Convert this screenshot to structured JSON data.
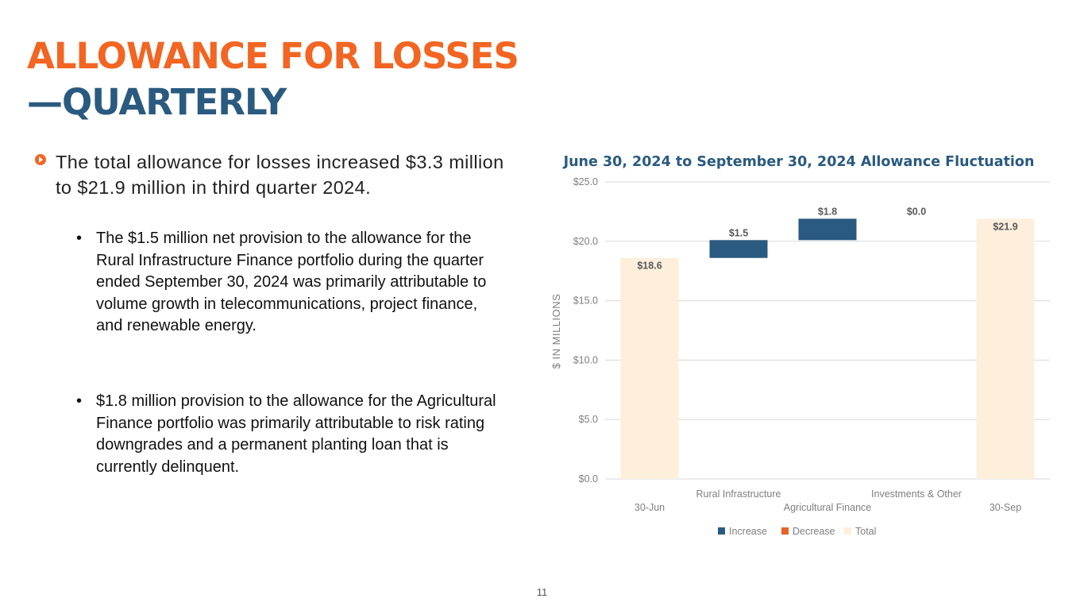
{
  "slide": {
    "title_line1": "ALLOWANCE FOR LOSSES",
    "title_line2": "—QUARTERLY",
    "main_bullet": "The total allowance for losses increased $3.3 million to $21.9 million in third quarter 2024.",
    "sub_bullets": [
      "The $1.5 million net provision to the allowance for the Rural Infrastructure Finance portfolio during the quarter ended September 30, 2024 was primarily attributable to volume growth in telecommunications, project finance, and renewable energy.",
      "$1.8 million provision to the allowance for the Agricultural Finance portfolio was primarily attributable to risk rating downgrades and a permanent planting loan that is currently delinquent."
    ],
    "bullet_symbol": "•",
    "page_number": "11"
  },
  "colors": {
    "title_orange": "#f26522",
    "title_blue": "#2a5a7f",
    "increase": "#2a5a7f",
    "decrease": "#e8622a",
    "total": "#fdefdc",
    "grid": "#d9d9d9",
    "axis_text": "#7f7f7f",
    "chart_title": "#2a5a7f"
  },
  "chart_data": {
    "type": "bar",
    "subtype": "waterfall",
    "title": "June 30, 2024 to September 30, 2024 Allowance Fluctuation",
    "ylabel": "$ IN MILLIONS",
    "xlabel": "",
    "ylim": [
      0,
      25
    ],
    "yticks": [
      0,
      5,
      10,
      15,
      20,
      25
    ],
    "ytick_labels": [
      "$0.0",
      "$5.0",
      "$10.0",
      "$15.0",
      "$20.0",
      "$25.0"
    ],
    "grid": true,
    "legend_position": "bottom",
    "legend": [
      "Increase",
      "Decrease",
      "Total"
    ],
    "categories": [
      "30-Jun",
      "Rural Infrastructure",
      "Agricultural Finance",
      "Investments & Other",
      "30-Sep"
    ],
    "bars": [
      {
        "category": "30-Jun",
        "kind": "total",
        "start": 0,
        "end": 18.6,
        "label": "$18.6"
      },
      {
        "category": "Rural Infrastructure",
        "kind": "increase",
        "start": 18.6,
        "end": 20.1,
        "label": "$1.5"
      },
      {
        "category": "Agricultural Finance",
        "kind": "increase",
        "start": 20.1,
        "end": 21.9,
        "label": "$1.8"
      },
      {
        "category": "Investments & Other",
        "kind": "increase",
        "start": 21.9,
        "end": 21.9,
        "label": "$0.0"
      },
      {
        "category": "30-Sep",
        "kind": "total",
        "start": 0,
        "end": 21.9,
        "label": "$21.9"
      }
    ]
  }
}
